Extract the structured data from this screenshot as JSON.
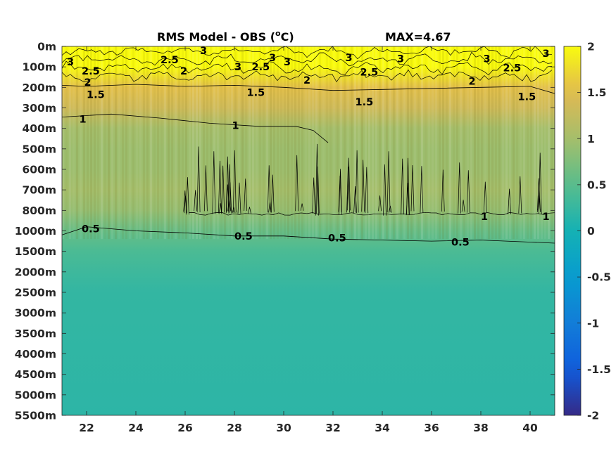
{
  "chart_data": {
    "type": "heatmap",
    "title": "RMS Model - OBS (",
    "title_superscript": "o",
    "title_unit_tail": "C)",
    "max_label": "MAX=4.67",
    "xlim": [
      21,
      41
    ],
    "x_ticks": [
      22,
      24,
      26,
      28,
      30,
      32,
      34,
      36,
      38,
      40
    ],
    "y_ticks": [
      "0m",
      "100m",
      "200m",
      "300m",
      "400m",
      "500m",
      "600m",
      "700m",
      "800m",
      "1000m",
      "1500m",
      "2000m",
      "2500m",
      "3000m",
      "3500m",
      "4000m",
      "4500m",
      "5000m",
      "5500m"
    ],
    "colorbar": {
      "min": -2,
      "max": 2,
      "ticks": [
        2,
        1.5,
        1,
        0.5,
        0,
        -0.5,
        -1,
        -1.5,
        -2
      ],
      "colormap": "parula"
    },
    "depth_profile": [
      {
        "depth": "0m",
        "value": 2.0
      },
      {
        "depth": "100m",
        "value": 2.0
      },
      {
        "depth": "200m",
        "value": 1.55
      },
      {
        "depth": "300m",
        "value": 1.35
      },
      {
        "depth": "400m",
        "value": 1.0
      },
      {
        "depth": "500m",
        "value": 0.95
      },
      {
        "depth": "600m",
        "value": 0.95
      },
      {
        "depth": "700m",
        "value": 1.0
      },
      {
        "depth": "800m",
        "value": 0.9
      },
      {
        "depth": "1000m",
        "value": 0.6
      },
      {
        "depth": "1500m",
        "value": 0.4
      },
      {
        "depth": "2000m",
        "value": 0.3
      },
      {
        "depth": "2500m",
        "value": 0.22
      },
      {
        "depth": "5500m",
        "value": 0.18
      }
    ],
    "contour_labels": [
      {
        "text": "3",
        "x": 21.2,
        "depth_index": 0.75
      },
      {
        "text": "2.5",
        "x": 21.8,
        "depth_index": 1.2
      },
      {
        "text": "2",
        "x": 21.9,
        "depth_index": 1.75
      },
      {
        "text": "2.5",
        "x": 25.0,
        "depth_index": 0.65
      },
      {
        "text": "2",
        "x": 25.8,
        "depth_index": 1.2
      },
      {
        "text": "3",
        "x": 26.6,
        "depth_index": 0.2
      },
      {
        "text": "3",
        "x": 28.0,
        "depth_index": 1.0
      },
      {
        "text": "2.5",
        "x": 28.7,
        "depth_index": 1.0
      },
      {
        "text": "3",
        "x": 29.4,
        "depth_index": 0.55
      },
      {
        "text": "3",
        "x": 30.0,
        "depth_index": 0.75
      },
      {
        "text": "2",
        "x": 30.8,
        "depth_index": 1.65
      },
      {
        "text": "3",
        "x": 32.5,
        "depth_index": 0.55
      },
      {
        "text": "2.5",
        "x": 33.1,
        "depth_index": 1.25
      },
      {
        "text": "3",
        "x": 34.6,
        "depth_index": 0.6
      },
      {
        "text": "2",
        "x": 37.5,
        "depth_index": 1.7
      },
      {
        "text": "3",
        "x": 38.1,
        "depth_index": 0.6
      },
      {
        "text": "2.5",
        "x": 38.9,
        "depth_index": 1.05
      },
      {
        "text": "3",
        "x": 40.5,
        "depth_index": 0.35
      },
      {
        "text": "1.5",
        "x": 22.0,
        "depth_index": 2.35
      },
      {
        "text": "1.5",
        "x": 28.5,
        "depth_index": 2.25
      },
      {
        "text": "1.5",
        "x": 32.9,
        "depth_index": 2.7
      },
      {
        "text": "1.5",
        "x": 39.5,
        "depth_index": 2.45
      },
      {
        "text": "1",
        "x": 21.7,
        "depth_index": 3.55
      },
      {
        "text": "1",
        "x": 27.9,
        "depth_index": 3.85
      },
      {
        "text": "1",
        "x": 38.0,
        "depth_index": 8.3
      },
      {
        "text": "1",
        "x": 40.5,
        "depth_index": 8.3
      },
      {
        "text": "0.5",
        "x": 21.8,
        "depth_index": 8.9
      },
      {
        "text": "0.5",
        "x": 28.0,
        "depth_index": 9.25
      },
      {
        "text": "0.5",
        "x": 31.8,
        "depth_index": 9.35
      },
      {
        "text": "0.5",
        "x": 36.8,
        "depth_index": 9.55
      }
    ],
    "contour_lines": [
      {
        "level": 1.5,
        "points": [
          [
            21.0,
            1.9
          ],
          [
            22.0,
            1.95
          ],
          [
            24.0,
            1.85
          ],
          [
            26.0,
            1.95
          ],
          [
            28.0,
            1.9
          ],
          [
            30.0,
            2.0
          ],
          [
            32.0,
            2.15
          ],
          [
            34.0,
            2.1
          ],
          [
            36.0,
            2.05
          ],
          [
            38.0,
            2.0
          ],
          [
            40.0,
            1.95
          ],
          [
            41.0,
            2.3
          ]
        ]
      },
      {
        "level": 1,
        "points": [
          [
            21.0,
            3.45
          ],
          [
            23.0,
            3.3
          ],
          [
            25.0,
            3.5
          ],
          [
            27.0,
            3.75
          ],
          [
            29.0,
            3.9
          ],
          [
            30.5,
            3.9
          ],
          [
            31.2,
            4.1
          ],
          [
            31.8,
            4.7
          ]
        ]
      },
      {
        "level": 0.5,
        "points": [
          [
            21.0,
            9.2
          ],
          [
            22.0,
            8.8
          ],
          [
            24.0,
            9.0
          ],
          [
            26.0,
            9.1
          ],
          [
            28.0,
            9.25
          ],
          [
            30.0,
            9.25
          ],
          [
            32.0,
            9.4
          ],
          [
            34.0,
            9.45
          ],
          [
            36.0,
            9.5
          ],
          [
            38.0,
            9.45
          ],
          [
            40.0,
            9.55
          ],
          [
            41.0,
            9.6
          ]
        ]
      }
    ]
  }
}
